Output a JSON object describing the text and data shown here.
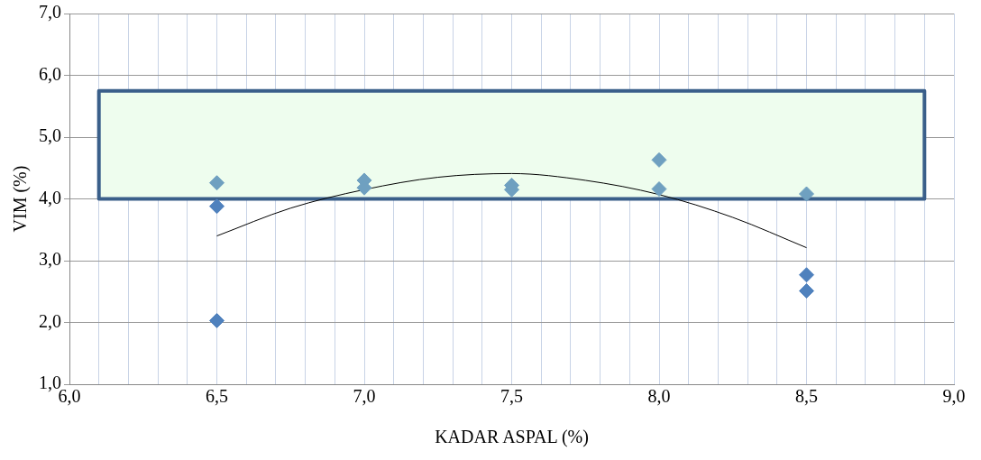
{
  "chart_data": {
    "type": "scatter",
    "xlabel": "KADAR ASPAL (%)",
    "ylabel": "VIM (%)",
    "xlim": [
      6.0,
      9.0
    ],
    "xticks": [
      {
        "value": 6.0,
        "label": "6,0"
      },
      {
        "value": 6.1,
        "label": null
      },
      {
        "value": 6.2,
        "label": null
      },
      {
        "value": 6.3,
        "label": null
      },
      {
        "value": 6.4,
        "label": null
      },
      {
        "value": 6.5,
        "label": "6,5"
      },
      {
        "value": 6.6,
        "label": null
      },
      {
        "value": 6.7,
        "label": null
      },
      {
        "value": 6.8,
        "label": null
      },
      {
        "value": 6.9,
        "label": null
      },
      {
        "value": 7.0,
        "label": "7,0"
      },
      {
        "value": 7.1,
        "label": null
      },
      {
        "value": 7.2,
        "label": null
      },
      {
        "value": 7.3,
        "label": null
      },
      {
        "value": 7.4,
        "label": null
      },
      {
        "value": 7.5,
        "label": "7,5"
      },
      {
        "value": 7.6,
        "label": null
      },
      {
        "value": 7.7,
        "label": null
      },
      {
        "value": 7.8,
        "label": null
      },
      {
        "value": 7.9,
        "label": null
      },
      {
        "value": 8.0,
        "label": "8,0"
      },
      {
        "value": 8.1,
        "label": null
      },
      {
        "value": 8.2,
        "label": null
      },
      {
        "value": 8.3,
        "label": null
      },
      {
        "value": 8.4,
        "label": null
      },
      {
        "value": 8.5,
        "label": "8,5"
      },
      {
        "value": 8.6,
        "label": null
      },
      {
        "value": 8.7,
        "label": null
      },
      {
        "value": 8.8,
        "label": null
      },
      {
        "value": 8.9,
        "label": null
      },
      {
        "value": 9.0,
        "label": "9,0"
      }
    ],
    "ylim": [
      1.0,
      7.0
    ],
    "yticks": [
      {
        "value": 1,
        "label": "1,0"
      },
      {
        "value": 2,
        "label": "2,0"
      },
      {
        "value": 3,
        "label": "3,0"
      },
      {
        "value": 4,
        "label": "4,0"
      },
      {
        "value": 5,
        "label": "5,0"
      },
      {
        "value": 6,
        "label": "6,0"
      },
      {
        "value": 7,
        "label": "7,0"
      }
    ],
    "grid": true,
    "marker": "diamond",
    "bands": [
      {
        "axis": "y",
        "from": 4.0,
        "to": 5.75,
        "color": "#eefdee"
      }
    ],
    "series": [
      {
        "color": "#4f81bd",
        "x": [
          6.5,
          6.5,
          8.5,
          8.5
        ],
        "values": [
          3.88,
          2.03,
          2.77,
          2.51
        ]
      },
      {
        "color": "#6fa0c0",
        "x": [
          6.5,
          7.0,
          7.0,
          7.5,
          7.5,
          8.0,
          8.0,
          8.5
        ],
        "values": [
          4.26,
          4.3,
          4.18,
          4.22,
          4.15,
          4.63,
          4.16,
          4.08
        ]
      },
      {
        "type": "line",
        "color": "#000000",
        "marker": "none",
        "x": [
          6.5,
          6.75,
          7.0,
          7.25,
          7.5,
          7.75,
          8.0,
          8.25,
          8.5
        ],
        "values": [
          3.4,
          3.85,
          4.15,
          4.35,
          4.41,
          4.3,
          4.07,
          3.7,
          3.21
        ]
      }
    ]
  }
}
